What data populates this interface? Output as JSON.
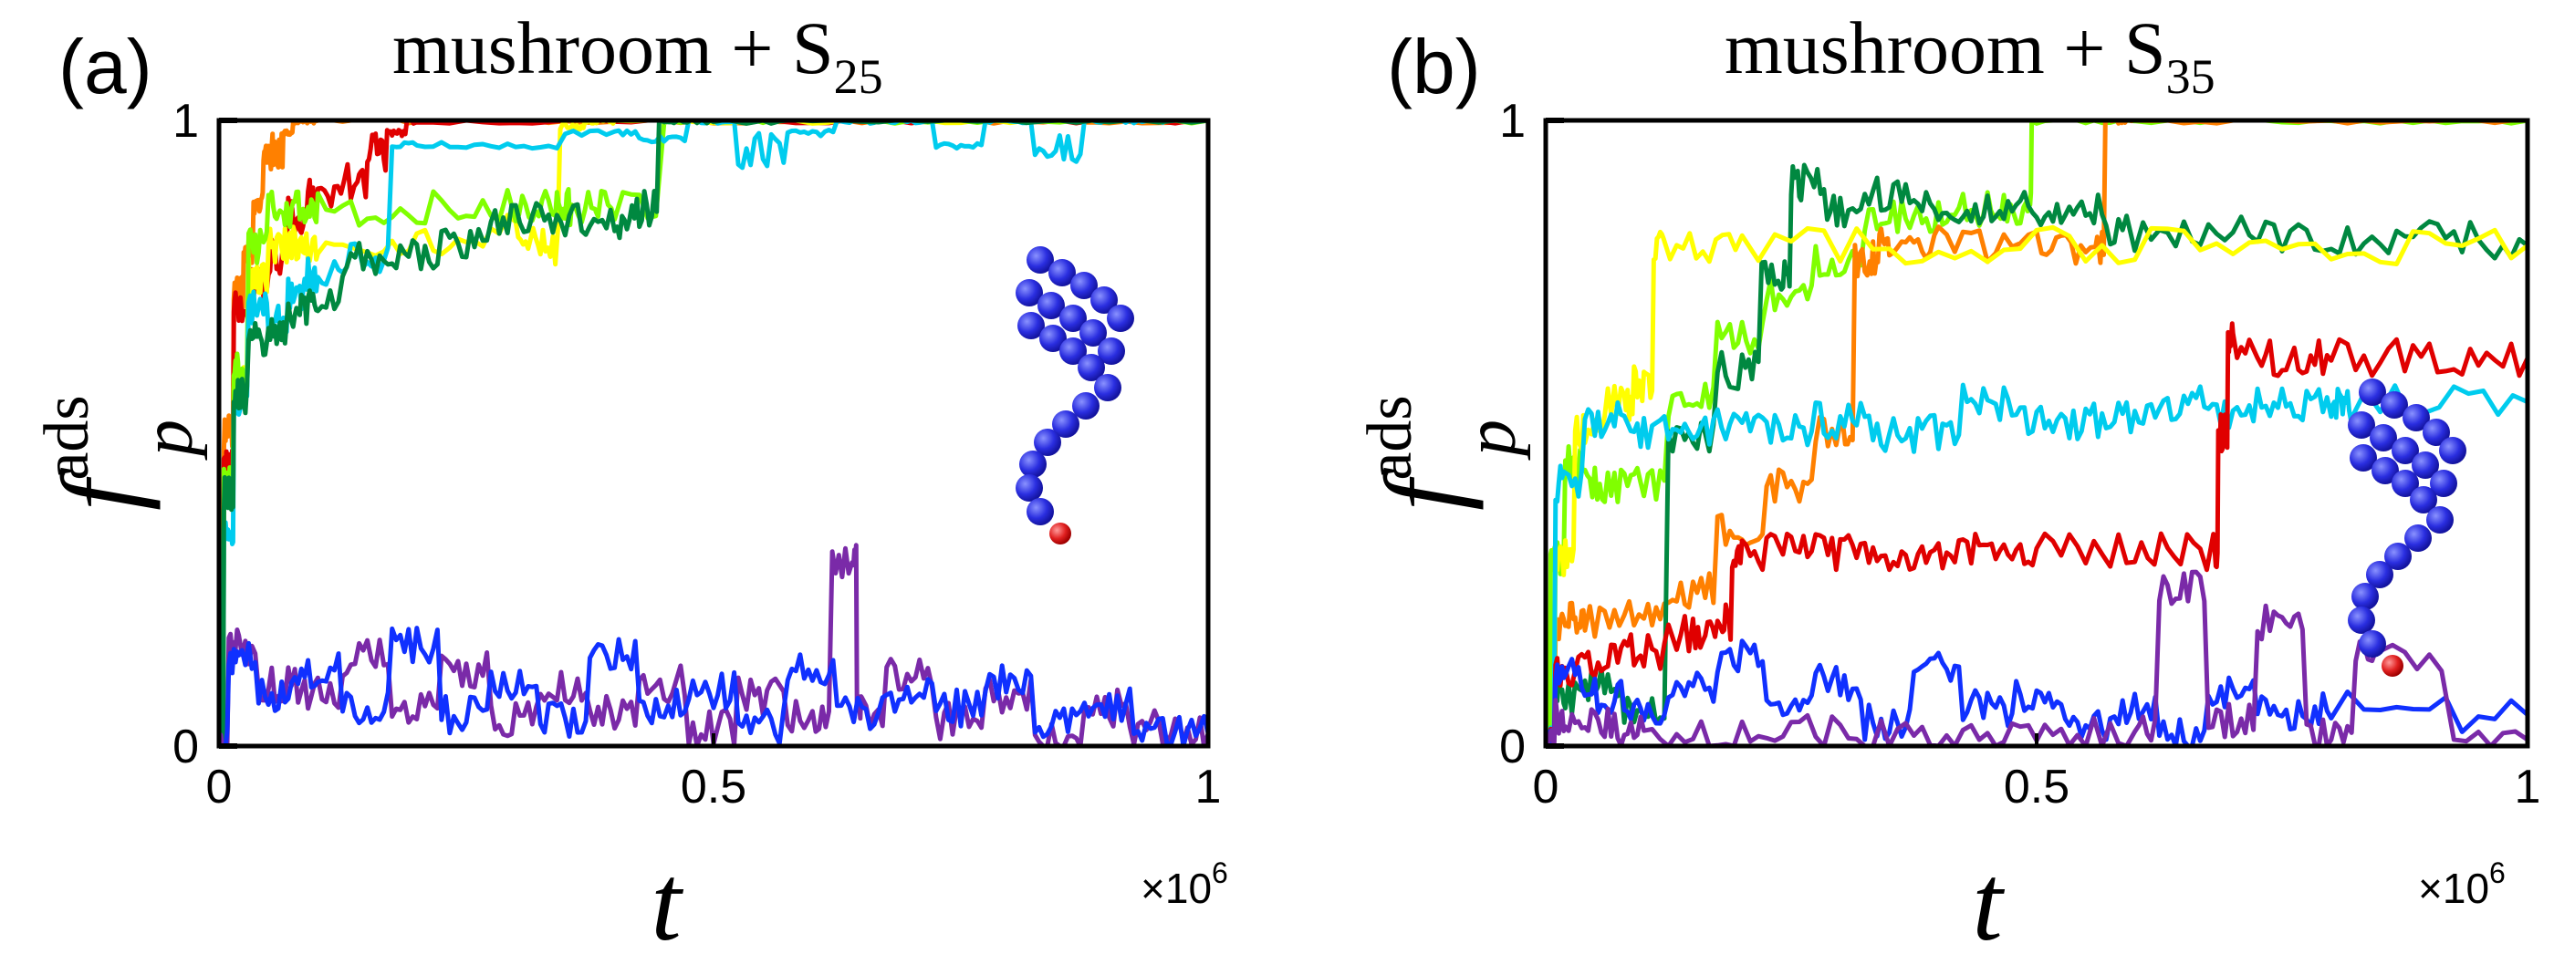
{
  "chart_data": [
    {
      "type": "line",
      "panel_label": "(a)",
      "title": "mushroom + S",
      "title_subscript": "25",
      "xlabel": "t",
      "ylabel": "f",
      "ylabel_superscript": "ads",
      "ylabel_subscript": "p",
      "xlim": [
        0,
        1000000
      ],
      "ylim": [
        0,
        1
      ],
      "x_ticks": [
        "0",
        "0.5",
        "1"
      ],
      "y_ticks": [
        "0",
        "1"
      ],
      "x_multiplier": "×10",
      "x_multiplier_exp": "6",
      "inset": "mushroom-molecule",
      "series": [
        {
          "color": "#ff8000",
          "x": [
            0,
            10000,
            20000,
            30000,
            40000,
            50000,
            60000,
            70000,
            80000,
            90000,
            100000,
            200000,
            400000,
            600000,
            800000,
            1000000
          ],
          "y": [
            0,
            0.5,
            0.72,
            0.8,
            0.86,
            0.95,
            0.95,
            0.98,
            1,
            1,
            1,
            1,
            1,
            1,
            1,
            1
          ]
        },
        {
          "color": "#e00000",
          "x": [
            0,
            10000,
            20000,
            40000,
            60000,
            80000,
            100000,
            140000,
            160000,
            180000,
            200000,
            400000,
            600000,
            800000,
            1000000
          ],
          "y": [
            0,
            0.45,
            0.7,
            0.74,
            0.78,
            0.85,
            0.88,
            0.9,
            0.95,
            0.98,
            1,
            1,
            1,
            1,
            1
          ]
        },
        {
          "color": "#ffff00",
          "x": [
            0,
            10000,
            20000,
            40000,
            60000,
            80000,
            100000,
            200000,
            300000,
            330000,
            360000,
            380000,
            400000,
            600000,
            800000,
            1000000
          ],
          "y": [
            0,
            0.4,
            0.58,
            0.75,
            0.8,
            0.8,
            0.8,
            0.8,
            0.82,
            0.8,
            0.99,
            1,
            1,
            1,
            1,
            1
          ]
        },
        {
          "color": "#80ff00",
          "x": [
            0,
            10000,
            20000,
            40000,
            60000,
            80000,
            100000,
            200000,
            300000,
            340000,
            360000,
            400000,
            500000,
            600000,
            800000,
            1000000
          ],
          "y": [
            0,
            0.42,
            0.6,
            0.8,
            0.86,
            0.86,
            0.86,
            0.86,
            0.86,
            0.86,
            0.86,
            0.86,
            1,
            1,
            1,
            1
          ]
        },
        {
          "color": "#00ccee",
          "x": [
            0,
            10000,
            20000,
            40000,
            60000,
            80000,
            100000,
            150000,
            200000,
            300000,
            400000,
            450000,
            500000,
            550000,
            600000,
            650000,
            700000,
            750000,
            800000,
            850000,
            900000,
            950000,
            1000000
          ],
          "y": [
            0,
            0.35,
            0.55,
            0.7,
            0.68,
            0.72,
            0.75,
            0.78,
            0.96,
            0.96,
            0.98,
            0.97,
            1,
            0.95,
            0.98,
            1,
            1,
            0.96,
            1,
            0.95,
            1,
            1,
            1
          ]
        },
        {
          "color": "#008840",
          "x": [
            0,
            10000,
            20000,
            40000,
            60000,
            80000,
            100000,
            150000,
            200000,
            250000,
            300000,
            350000,
            400000,
            430000,
            460000,
            500000,
            600000,
            800000,
            1000000
          ],
          "y": [
            0,
            0.4,
            0.56,
            0.65,
            0.66,
            0.7,
            0.72,
            0.78,
            0.78,
            0.8,
            0.84,
            0.84,
            0.84,
            0.86,
            1,
            1,
            1,
            1,
            1
          ]
        },
        {
          "color": "#7a2aa8",
          "x": [
            0,
            20000,
            60000,
            100000,
            150000,
            200000,
            250000,
            300000,
            350000,
            400000,
            450000,
            500000,
            550000,
            600000,
            640000,
            650000,
            700000,
            750000,
            800000,
            850000,
            900000,
            950000,
            1000000
          ],
          "y": [
            0,
            0.16,
            0.1,
            0.08,
            0.14,
            0.06,
            0.12,
            0.04,
            0.09,
            0.05,
            0.1,
            0.03,
            0.08,
            0.05,
            0.3,
            0.06,
            0.12,
            0.04,
            0.08,
            0.02,
            0.06,
            0.03,
            0.02
          ]
        },
        {
          "color": "#1030ff",
          "x": [
            0,
            20000,
            60000,
            100000,
            150000,
            200000,
            250000,
            300000,
            350000,
            400000,
            450000,
            500000,
            550000,
            600000,
            650000,
            700000,
            750000,
            800000,
            850000,
            900000,
            950000,
            1000000
          ],
          "y": [
            0,
            0.14,
            0.08,
            0.12,
            0.06,
            0.16,
            0.05,
            0.1,
            0.04,
            0.15,
            0.06,
            0.09,
            0.03,
            0.12,
            0.05,
            0.08,
            0.06,
            0.1,
            0.04,
            0.07,
            0.03,
            0.02
          ]
        }
      ]
    },
    {
      "type": "line",
      "panel_label": "(b)",
      "title": "mushroom + S",
      "title_subscript": "35",
      "xlabel": "t",
      "ylabel": "f",
      "ylabel_superscript": "ads",
      "ylabel_subscript": "p",
      "xlim": [
        0,
        1000000
      ],
      "ylim": [
        0,
        1
      ],
      "x_ticks": [
        "0",
        "0.5",
        "1"
      ],
      "y_ticks": [
        "0",
        "1"
      ],
      "x_multiplier": "×10",
      "x_multiplier_exp": "6",
      "inset": "mushroom-molecule",
      "series": [
        {
          "color": "#80ff00",
          "x": [
            0,
            10000,
            30000,
            60000,
            100000,
            150000,
            200000,
            250000,
            300000,
            350000,
            400000,
            450000,
            490000,
            500000,
            600000,
            800000,
            1000000
          ],
          "y": [
            0,
            0.3,
            0.45,
            0.42,
            0.42,
            0.55,
            0.65,
            0.72,
            0.78,
            0.85,
            0.85,
            0.86,
            0.86,
            1,
            1,
            1,
            1
          ]
        },
        {
          "color": "#ff8000",
          "x": [
            0,
            20000,
            40000,
            100000,
            150000,
            200000,
            250000,
            300000,
            330000,
            350000,
            400000,
            500000,
            560000,
            580000,
            600000,
            800000,
            1000000
          ],
          "y": [
            0,
            0.2,
            0.2,
            0.22,
            0.25,
            0.35,
            0.42,
            0.5,
            0.78,
            0.8,
            0.8,
            0.8,
            0.8,
            1,
            1,
            1,
            1
          ]
        },
        {
          "color": "#008840",
          "x": [
            0,
            20000,
            60000,
            100000,
            150000,
            200000,
            240000,
            260000,
            300000,
            350000,
            400000,
            450000,
            500000,
            550000,
            600000,
            700000,
            800000,
            900000,
            1000000
          ],
          "y": [
            0,
            0.08,
            0.1,
            0.05,
            0.5,
            0.6,
            0.75,
            0.9,
            0.86,
            0.88,
            0.86,
            0.86,
            0.86,
            0.86,
            0.82,
            0.82,
            0.81,
            0.81,
            0.8
          ]
        },
        {
          "color": "#ffff00",
          "x": [
            0,
            20000,
            40000,
            80000,
            100000,
            120000,
            200000,
            400000,
            600000,
            800000,
            1000000
          ],
          "y": [
            0,
            0.3,
            0.5,
            0.55,
            0.58,
            0.8,
            0.8,
            0.8,
            0.8,
            0.8,
            0.8
          ]
        },
        {
          "color": "#00ccee",
          "x": [
            0,
            20000,
            60000,
            100000,
            150000,
            200000,
            250000,
            300000,
            350000,
            400000,
            450000,
            500000,
            550000,
            600000,
            650000,
            700000,
            750000,
            800000,
            820000,
            1000000
          ],
          "y": [
            0,
            0.42,
            0.52,
            0.5,
            0.5,
            0.52,
            0.5,
            0.52,
            0.5,
            0.5,
            0.55,
            0.52,
            0.52,
            0.53,
            0.55,
            0.53,
            0.55,
            0.55,
            0.55,
            0.55
          ]
        },
        {
          "color": "#e00000",
          "x": [
            0,
            20000,
            60000,
            100000,
            150000,
            180000,
            200000,
            250000,
            300000,
            350000,
            400000,
            450000,
            500000,
            600000,
            680000,
            690000,
            700000,
            750000,
            800000,
            900000,
            1000000
          ],
          "y": [
            0,
            0.12,
            0.14,
            0.15,
            0.18,
            0.2,
            0.3,
            0.31,
            0.31,
            0.31,
            0.31,
            0.31,
            0.31,
            0.31,
            0.31,
            0.5,
            0.65,
            0.62,
            0.62,
            0.62,
            0.62
          ]
        },
        {
          "color": "#1030ff",
          "x": [
            0,
            20000,
            60000,
            100000,
            150000,
            200000,
            250000,
            300000,
            350000,
            400000,
            450000,
            500000,
            550000,
            600000,
            650000,
            700000,
            750000,
            800000,
            1000000
          ],
          "y": [
            0,
            0.12,
            0.08,
            0.05,
            0.1,
            0.14,
            0.06,
            0.1,
            0.04,
            0.12,
            0.06,
            0.08,
            0.04,
            0.06,
            0.02,
            0.08,
            0.05,
            0.06,
            0.05
          ]
        },
        {
          "color": "#7a2aa8",
          "x": [
            0,
            20000,
            60000,
            100000,
            200000,
            300000,
            400000,
            500000,
            600000,
            650000,
            700000,
            750000,
            800000,
            850000,
            1000000
          ],
          "y": [
            0,
            0.05,
            0.03,
            0.02,
            0.01,
            0.02,
            0.01,
            0.01,
            0.02,
            0.25,
            0.04,
            0.2,
            0.03,
            0.15,
            0.01
          ]
        }
      ]
    }
  ]
}
